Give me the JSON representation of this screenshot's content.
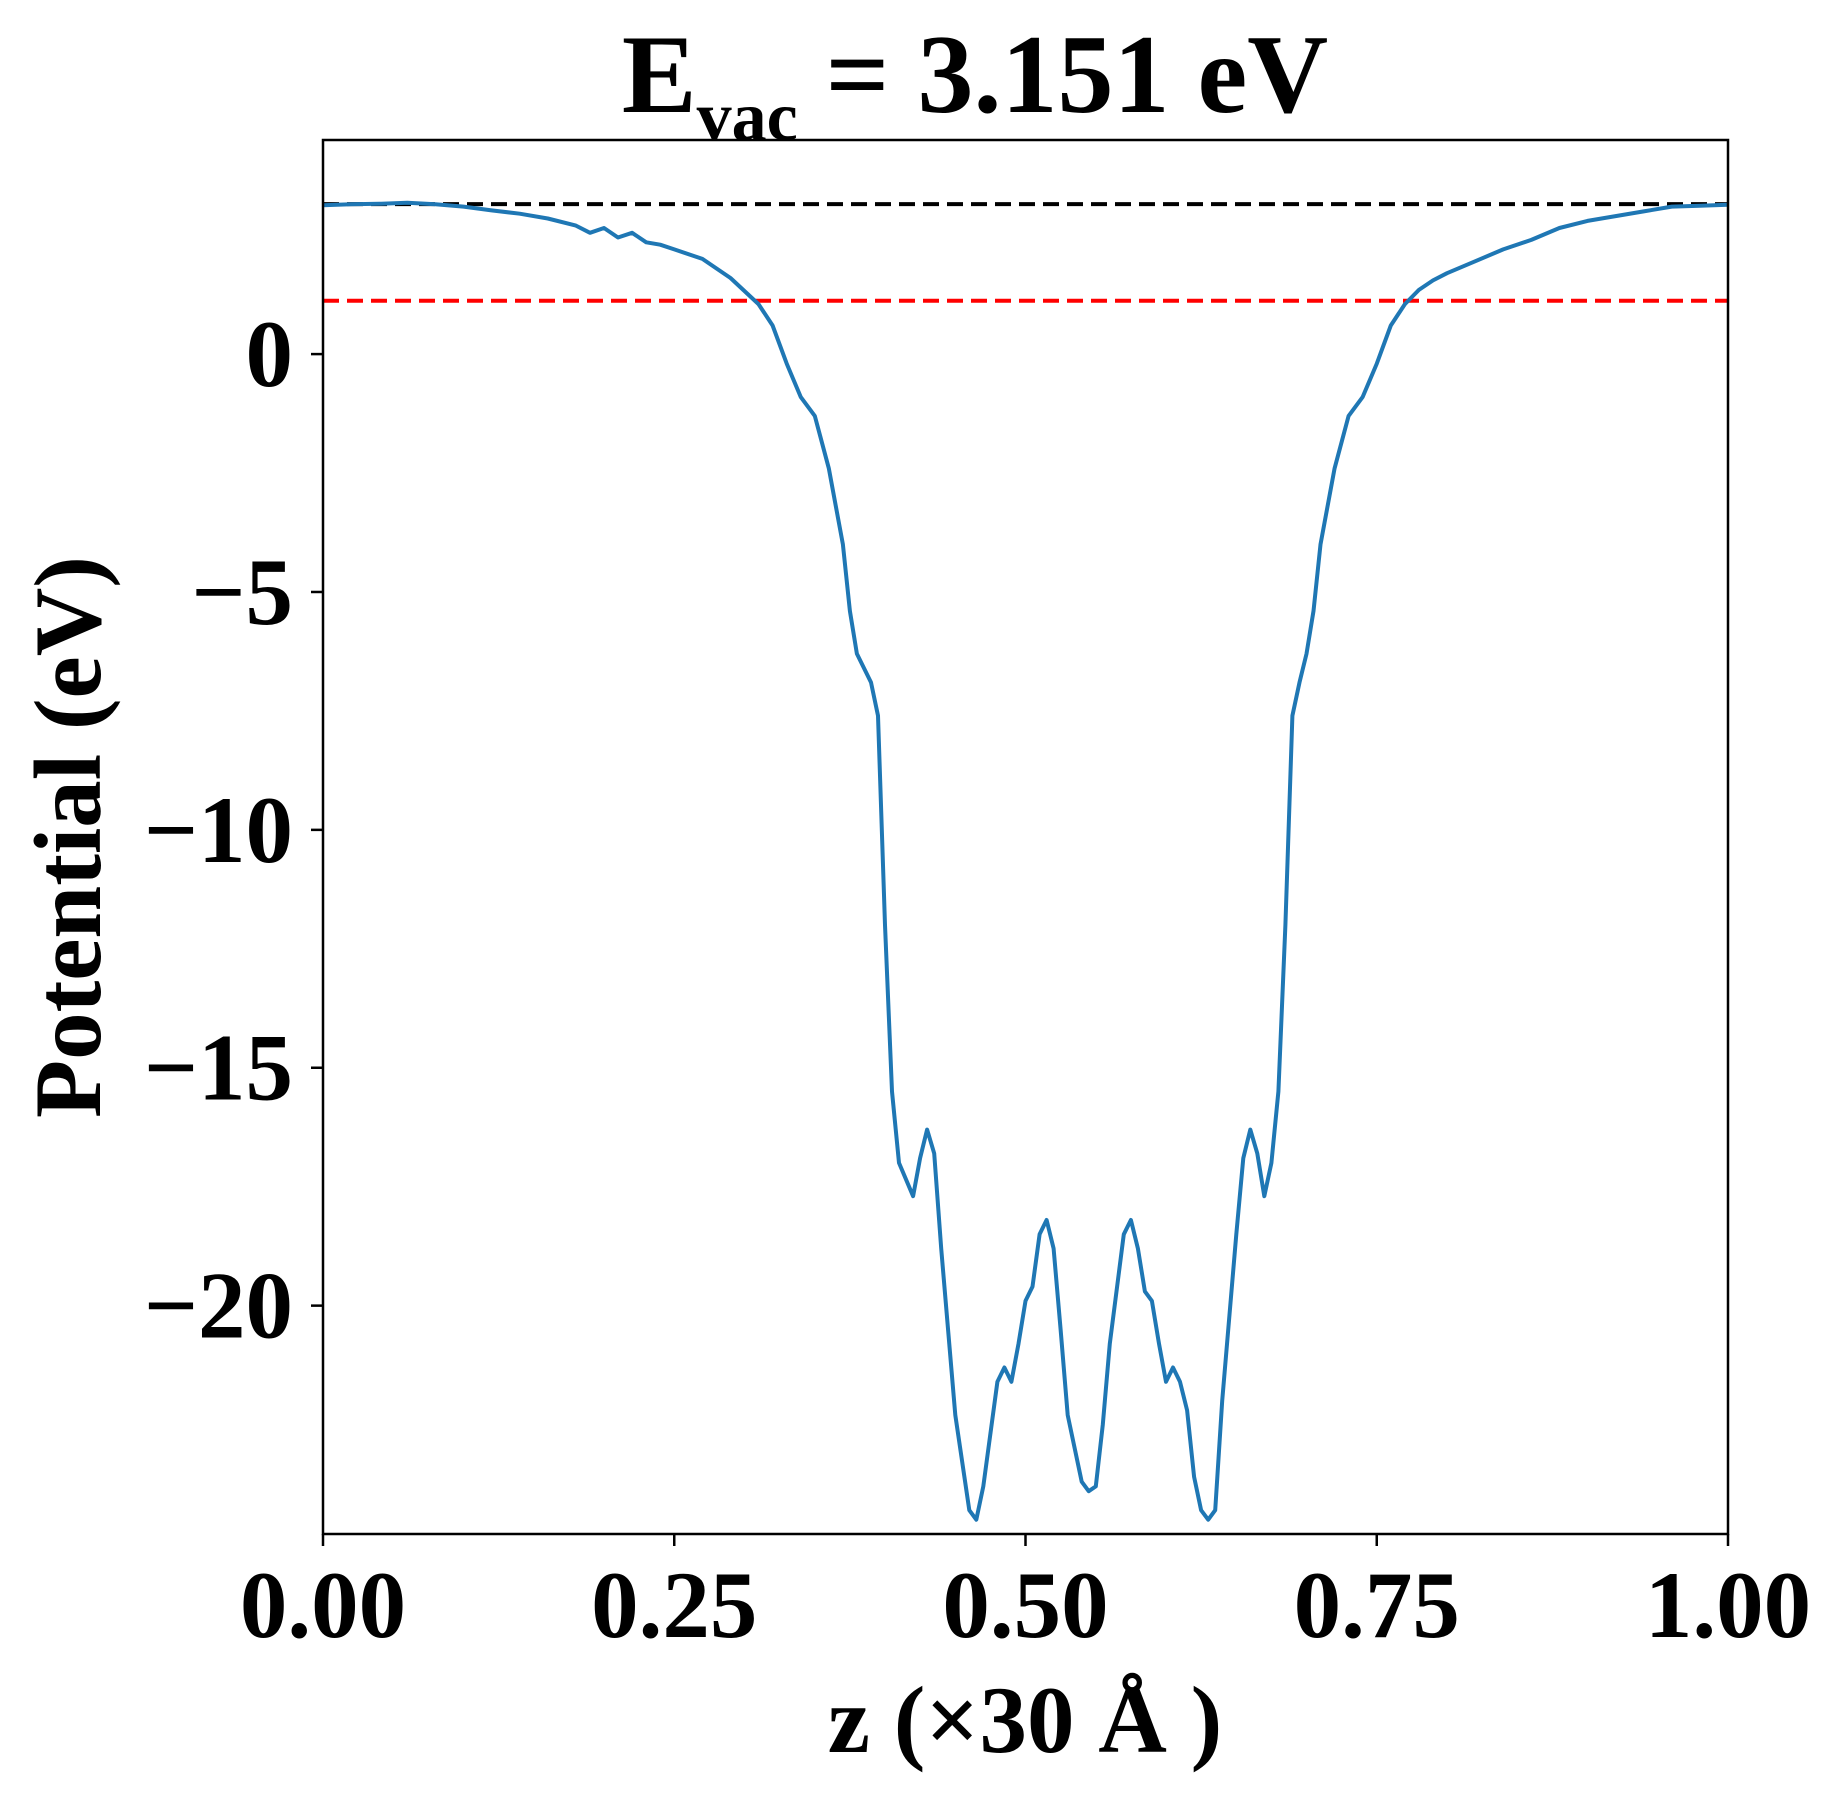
{
  "chart_data": {
    "type": "line",
    "title": {
      "main": "E",
      "subscript": "vac",
      "rest": " = 3.151 eV"
    },
    "xlabel": "z (×30 Å )",
    "ylabel": "Potential (eV)",
    "xlim": [
      0,
      1
    ],
    "ylim": [
      -24.8,
      4.5
    ],
    "xticks": [
      0,
      0.25,
      0.5,
      0.75,
      1.0
    ],
    "xtick_labels": [
      "0.00",
      "0.25",
      "0.50",
      "0.75",
      "1.00"
    ],
    "yticks": [
      0,
      -5,
      -10,
      -15,
      -20
    ],
    "ytick_labels": [
      "0",
      "−5",
      "−10",
      "−15",
      "−20"
    ],
    "grid": false,
    "hlines": [
      {
        "y": 3.151,
        "color": "#000000",
        "style": "dashed"
      },
      {
        "y": 1.12,
        "color": "#ff0000",
        "style": "dashed"
      }
    ],
    "series": [
      {
        "color": "#1f77b4",
        "x": [
          0.0,
          0.02,
          0.04,
          0.06,
          0.08,
          0.1,
          0.12,
          0.14,
          0.16,
          0.18,
          0.19,
          0.2,
          0.21,
          0.22,
          0.23,
          0.24,
          0.25,
          0.27,
          0.29,
          0.31,
          0.32,
          0.33,
          0.34,
          0.35,
          0.36,
          0.37,
          0.375,
          0.38,
          0.39,
          0.395,
          0.4,
          0.405,
          0.41,
          0.42,
          0.425,
          0.43,
          0.435,
          0.44,
          0.45,
          0.46,
          0.465,
          0.47,
          0.48,
          0.485,
          0.49,
          0.495,
          0.5,
          0.505,
          0.51,
          0.515,
          0.52,
          0.525,
          0.53,
          0.54,
          0.545,
          0.55,
          0.555,
          0.56,
          0.57,
          0.575,
          0.58,
          0.585,
          0.59,
          0.595,
          0.6,
          0.605,
          0.61,
          0.615,
          0.62,
          0.625,
          0.63,
          0.635,
          0.64,
          0.65,
          0.655,
          0.66,
          0.665,
          0.67,
          0.675,
          0.68,
          0.685,
          0.69,
          0.695,
          0.7,
          0.705,
          0.71,
          0.72,
          0.73,
          0.74,
          0.75,
          0.76,
          0.77,
          0.78,
          0.79,
          0.8,
          0.82,
          0.84,
          0.86,
          0.88,
          0.9,
          0.92,
          0.94,
          0.96,
          0.98,
          1.0
        ],
        "y": [
          3.13,
          3.15,
          3.16,
          3.18,
          3.15,
          3.1,
          3.02,
          2.95,
          2.85,
          2.7,
          2.55,
          2.65,
          2.45,
          2.55,
          2.35,
          2.3,
          2.2,
          2.0,
          1.6,
          1.05,
          0.6,
          -0.2,
          -0.9,
          -1.3,
          -2.4,
          -4.0,
          -5.4,
          -6.3,
          -6.9,
          -7.6,
          -12.0,
          -15.5,
          -17.0,
          -17.7,
          -16.9,
          -16.3,
          -16.8,
          -18.8,
          -22.3,
          -24.3,
          -24.5,
          -23.8,
          -21.6,
          -21.3,
          -21.6,
          -20.8,
          -19.9,
          -19.6,
          -18.5,
          -18.2,
          -18.8,
          -20.5,
          -22.3,
          -23.7,
          -23.9,
          -23.8,
          -22.5,
          -20.8,
          -18.5,
          -18.2,
          -18.8,
          -19.7,
          -19.9,
          -20.8,
          -21.6,
          -21.3,
          -21.6,
          -22.2,
          -23.6,
          -24.3,
          -24.5,
          -24.3,
          -22.0,
          -18.5,
          -16.9,
          -16.3,
          -16.8,
          -17.7,
          -17.0,
          -15.5,
          -12.0,
          -7.6,
          -6.9,
          -6.3,
          -5.4,
          -4.0,
          -2.4,
          -1.3,
          -0.9,
          -0.2,
          0.6,
          1.05,
          1.35,
          1.55,
          1.7,
          1.95,
          2.2,
          2.4,
          2.65,
          2.8,
          2.9,
          3.0,
          3.1,
          3.12,
          3.14
        ]
      }
    ]
  }
}
